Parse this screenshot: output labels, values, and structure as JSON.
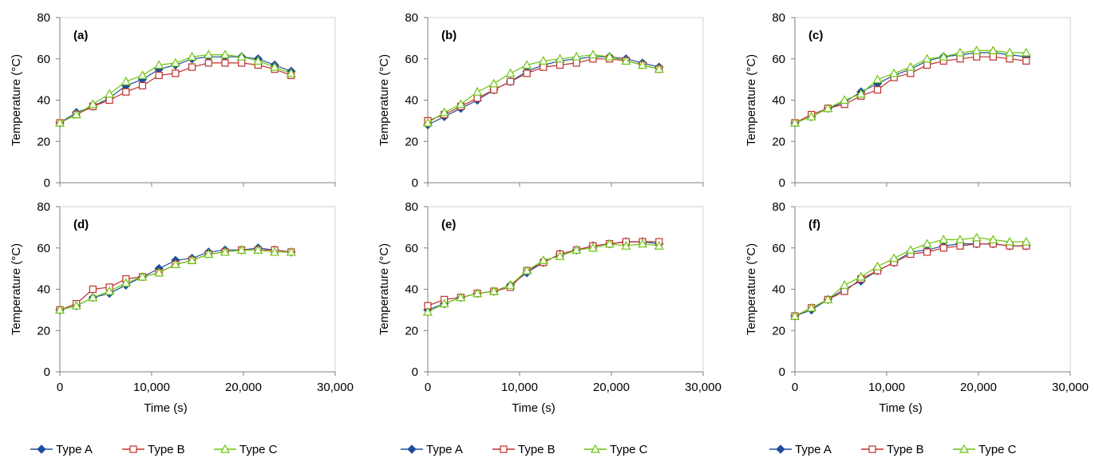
{
  "figure": {
    "x_axis_label": "Time (s)",
    "y_axis_label": "Temperature (°C)"
  },
  "legend": [
    {
      "name": "Type A",
      "color": "#1f4e9c",
      "marker": "diamond"
    },
    {
      "name": "Type B",
      "color": "#c0302c",
      "marker": "square"
    },
    {
      "name": "Type C",
      "color": "#6cc40f",
      "marker": "triangle"
    }
  ],
  "chart_data": [
    {
      "type": "line",
      "panel": "(a)",
      "xlabel": "",
      "ylabel": "Temperature (°C)",
      "xlim": [
        0,
        30000
      ],
      "ylim": [
        0,
        80
      ],
      "xticks": [
        "0",
        "10,000",
        "20,000",
        "30,000"
      ],
      "yticks": [
        "0",
        "20",
        "40",
        "60",
        "80"
      ],
      "x": [
        0,
        1800,
        3600,
        5400,
        7200,
        9000,
        10800,
        12600,
        14400,
        16200,
        18000,
        19800,
        21600,
        23400,
        25200
      ],
      "series": [
        {
          "name": "Type A",
          "values": [
            29,
            34,
            37,
            41,
            47,
            50,
            55,
            57,
            60,
            61,
            61,
            61,
            60,
            57,
            54
          ]
        },
        {
          "name": "Type B",
          "values": [
            29,
            33,
            37,
            40,
            44,
            47,
            52,
            53,
            56,
            58,
            58,
            58,
            57,
            55,
            52
          ]
        },
        {
          "name": "Type C",
          "values": [
            29,
            33,
            38,
            43,
            49,
            52,
            57,
            58,
            61,
            62,
            62,
            61,
            59,
            56,
            53
          ]
        }
      ]
    },
    {
      "type": "line",
      "panel": "(b)",
      "xlabel": "",
      "ylabel": "Temperature (°C)",
      "xlim": [
        0,
        30000
      ],
      "ylim": [
        0,
        80
      ],
      "xticks": [
        "0",
        "10,000",
        "20,000",
        "30,000"
      ],
      "yticks": [
        "0",
        "20",
        "40",
        "60",
        "80"
      ],
      "x": [
        0,
        1800,
        3600,
        5400,
        7200,
        9000,
        10800,
        12600,
        14400,
        16200,
        18000,
        19800,
        21600,
        23400,
        25200
      ],
      "series": [
        {
          "name": "Type A",
          "values": [
            28,
            32,
            36,
            40,
            45,
            49,
            54,
            57,
            59,
            60,
            61,
            61,
            60,
            58,
            56
          ]
        },
        {
          "name": "Type B",
          "values": [
            30,
            33,
            37,
            41,
            45,
            49,
            53,
            56,
            57,
            58,
            60,
            60,
            59,
            57,
            55
          ]
        },
        {
          "name": "Type C",
          "values": [
            29,
            34,
            38,
            44,
            48,
            53,
            57,
            59,
            60,
            61,
            62,
            61,
            59,
            57,
            55
          ]
        }
      ]
    },
    {
      "type": "line",
      "panel": "(c)",
      "xlabel": "",
      "ylabel": "Temperature (°C)",
      "xlim": [
        0,
        30000
      ],
      "ylim": [
        0,
        80
      ],
      "xticks": [
        "0",
        "10,000",
        "20,000",
        "30,000"
      ],
      "yticks": [
        "0",
        "20",
        "40",
        "60",
        "80"
      ],
      "x": [
        0,
        1800,
        3600,
        5400,
        7200,
        9000,
        10800,
        12600,
        14400,
        16200,
        18000,
        19800,
        21600,
        23400,
        25200
      ],
      "series": [
        {
          "name": "Type A",
          "values": [
            29,
            32,
            36,
            39,
            44,
            48,
            52,
            55,
            59,
            61,
            62,
            63,
            63,
            62,
            61
          ]
        },
        {
          "name": "Type B",
          "values": [
            29,
            33,
            36,
            38,
            42,
            45,
            51,
            53,
            57,
            59,
            60,
            61,
            61,
            60,
            59
          ]
        },
        {
          "name": "Type C",
          "values": [
            29,
            32,
            36,
            40,
            43,
            50,
            53,
            56,
            60,
            61,
            63,
            64,
            64,
            63,
            63
          ]
        }
      ]
    },
    {
      "type": "line",
      "panel": "(d)",
      "xlabel": "Time (s)",
      "ylabel": "Temperature (°C)",
      "xlim": [
        0,
        30000
      ],
      "ylim": [
        0,
        80
      ],
      "xticks": [
        "0",
        "10,000",
        "20,000",
        "30,000"
      ],
      "yticks": [
        "0",
        "20",
        "40",
        "60",
        "80"
      ],
      "x": [
        0,
        1800,
        3600,
        5400,
        7200,
        9000,
        10800,
        12600,
        14400,
        16200,
        18000,
        19800,
        21600,
        23400,
        25200
      ],
      "series": [
        {
          "name": "Type A",
          "values": [
            30,
            32,
            36,
            38,
            42,
            46,
            50,
            54,
            55,
            58,
            59,
            59,
            60,
            59,
            58
          ]
        },
        {
          "name": "Type B",
          "values": [
            30,
            33,
            40,
            41,
            45,
            46,
            48,
            52,
            54,
            57,
            58,
            59,
            59,
            59,
            58
          ]
        },
        {
          "name": "Type C",
          "values": [
            30,
            32,
            36,
            39,
            43,
            46,
            48,
            52,
            54,
            57,
            58,
            59,
            59,
            58,
            58
          ]
        }
      ]
    },
    {
      "type": "line",
      "panel": "(e)",
      "xlabel": "Time (s)",
      "ylabel": "Temperature (°C)",
      "xlim": [
        0,
        30000
      ],
      "ylim": [
        0,
        80
      ],
      "xticks": [
        "0",
        "10,000",
        "20,000",
        "30,000"
      ],
      "yticks": [
        "0",
        "20",
        "40",
        "60",
        "80"
      ],
      "x": [
        0,
        1800,
        3600,
        5400,
        7200,
        9000,
        10800,
        12600,
        14400,
        16200,
        18000,
        19800,
        21600,
        23400,
        25200
      ],
      "series": [
        {
          "name": "Type A",
          "values": [
            30,
            33,
            36,
            38,
            39,
            42,
            48,
            53,
            57,
            59,
            61,
            62,
            63,
            63,
            62
          ]
        },
        {
          "name": "Type B",
          "values": [
            32,
            35,
            36,
            38,
            39,
            41,
            49,
            53,
            57,
            59,
            61,
            62,
            63,
            63,
            63
          ]
        },
        {
          "name": "Type C",
          "values": [
            29,
            33,
            36,
            38,
            39,
            42,
            49,
            54,
            56,
            59,
            60,
            62,
            61,
            62,
            61
          ]
        }
      ]
    },
    {
      "type": "line",
      "panel": "(f)",
      "xlabel": "Time (s)",
      "ylabel": "Temperature (°C)",
      "xlim": [
        0,
        30000
      ],
      "ylim": [
        0,
        80
      ],
      "xticks": [
        "0",
        "10,000",
        "20,000",
        "30,000"
      ],
      "yticks": [
        "0",
        "20",
        "40",
        "60",
        "80"
      ],
      "x": [
        0,
        1800,
        3600,
        5400,
        7200,
        9000,
        10800,
        12600,
        14400,
        16200,
        18000,
        19800,
        21600,
        23400,
        25200
      ],
      "series": [
        {
          "name": "Type A",
          "values": [
            27,
            30,
            35,
            40,
            44,
            49,
            53,
            58,
            59,
            61,
            62,
            62,
            62,
            61,
            61
          ]
        },
        {
          "name": "Type B",
          "values": [
            27,
            31,
            35,
            39,
            45,
            49,
            53,
            57,
            58,
            60,
            61,
            62,
            62,
            61,
            61
          ]
        },
        {
          "name": "Type C",
          "values": [
            27,
            31,
            35,
            42,
            46,
            51,
            55,
            59,
            62,
            64,
            64,
            65,
            64,
            63,
            63
          ]
        }
      ]
    }
  ]
}
